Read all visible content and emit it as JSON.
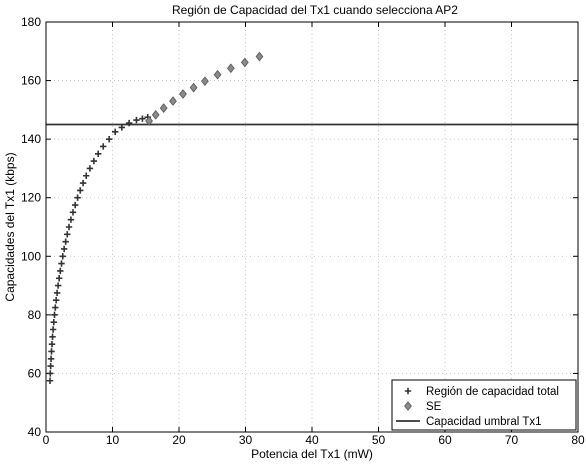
{
  "chart_data": {
    "type": "scatter",
    "title": "Región de Capacidad del Tx1 cuando selecciona AP2",
    "xlabel": "Potencia del Tx1 (mW)",
    "ylabel": "Capacidades del  Tx1 (kbps)",
    "xlim": [
      0,
      80
    ],
    "ylim": [
      40,
      180
    ],
    "xticks": [
      "0",
      "10",
      "20",
      "30",
      "40",
      "50",
      "60",
      "70",
      "80"
    ],
    "yticks": [
      "40",
      "60",
      "80",
      "100",
      "120",
      "140",
      "160",
      "180"
    ],
    "grid": true,
    "legend_position": "bottom-right",
    "series": [
      {
        "name": "Región de capacidad total",
        "marker": "plus",
        "color": "#333333",
        "points": [
          [
            0.6,
            57.5
          ],
          [
            0.65,
            60
          ],
          [
            0.7,
            62.5
          ],
          [
            0.76,
            65
          ],
          [
            0.83,
            67.5
          ],
          [
            0.9,
            70
          ],
          [
            0.98,
            72.5
          ],
          [
            1.07,
            75
          ],
          [
            1.17,
            77.5
          ],
          [
            1.28,
            80
          ],
          [
            1.4,
            82.5
          ],
          [
            1.53,
            85
          ],
          [
            1.67,
            87.5
          ],
          [
            1.82,
            90
          ],
          [
            1.98,
            92.5
          ],
          [
            2.15,
            95
          ],
          [
            2.33,
            97.5
          ],
          [
            2.52,
            100
          ],
          [
            2.73,
            102.5
          ],
          [
            2.96,
            105
          ],
          [
            3.2,
            107.5
          ],
          [
            3.46,
            110
          ],
          [
            3.75,
            112.5
          ],
          [
            4.06,
            115
          ],
          [
            4.39,
            117.5
          ],
          [
            4.75,
            120
          ],
          [
            5.15,
            122.5
          ],
          [
            5.58,
            125
          ],
          [
            6.05,
            127.5
          ],
          [
            6.6,
            130
          ],
          [
            7.2,
            132.5
          ],
          [
            7.85,
            135
          ],
          [
            8.6,
            137.5
          ],
          [
            9.5,
            140
          ],
          [
            10.4,
            142.5
          ],
          [
            11.4,
            144
          ],
          [
            12.5,
            145.5
          ],
          [
            13.6,
            146.5
          ],
          [
            14.5,
            147
          ],
          [
            15.3,
            147.5
          ]
        ]
      },
      {
        "name": "SE",
        "marker": "diamond",
        "color": "#8a8a8a",
        "points": [
          [
            15.5,
            146.2
          ],
          [
            16.5,
            148.3
          ],
          [
            17.7,
            150.6
          ],
          [
            19.1,
            153
          ],
          [
            20.6,
            155.4
          ],
          [
            22.2,
            157.6
          ],
          [
            23.9,
            159.8
          ],
          [
            25.8,
            162
          ],
          [
            27.8,
            164.2
          ],
          [
            29.9,
            166.2
          ],
          [
            32.1,
            168.2
          ]
        ]
      },
      {
        "name": "Capacidad umbral Tx1",
        "marker": "line",
        "color": "#333333",
        "y": 145
      }
    ]
  }
}
